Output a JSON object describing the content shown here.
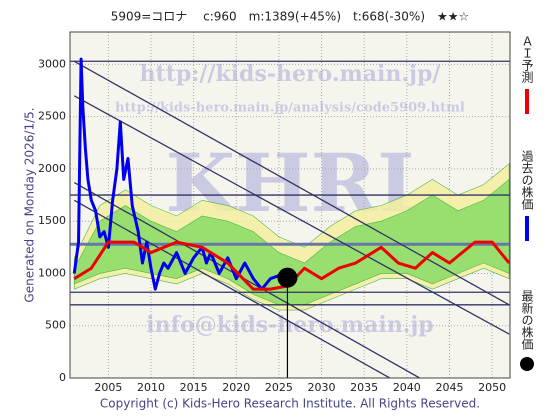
{
  "chart_data": {
    "type": "line",
    "title": "5909=コロナ　 c:960　m:1389(+45%)　t:668(-30%)　★★☆",
    "side_label": "Generated on Monday 2026/1/5.",
    "footer": "Copyright (c) Kids-Hero Research Institute. All Rights Reserved.",
    "watermarks": [
      "http://kids-hero.main.jp/",
      "http://kids-hero.main.jp/analysis/code5909.html",
      "KHRI",
      "info@kids-hero.main.jp"
    ],
    "xlim": [
      2000.5,
      2052.1
    ],
    "ylim": [
      0,
      3310
    ],
    "xticks": [
      2005,
      2010,
      2015,
      2020,
      2025,
      2030,
      2035,
      2040,
      2045,
      2050
    ],
    "yticks": [
      0,
      500,
      1000,
      1500,
      2000,
      2500,
      3000
    ],
    "grid": true,
    "series": [
      {
        "name": "過去の株価",
        "color": "#0000ee",
        "x": [
          2001,
          2001.5,
          2001.8,
          2002,
          2002.3,
          2002.6,
          2003,
          2003.5,
          2004,
          2004.5,
          2005,
          2005.5,
          2006,
          2006.4,
          2006.8,
          2007.3,
          2007.8,
          2008.5,
          2009,
          2009.5,
          2010,
          2010.5,
          2011,
          2011.5,
          2012,
          2013,
          2014,
          2015,
          2016,
          2016.5,
          2017,
          2018,
          2019,
          2020,
          2021,
          2022,
          2023,
          2024,
          2025
        ],
        "values": [
          1000,
          1300,
          3050,
          2600,
          2200,
          1900,
          1700,
          1600,
          1350,
          1400,
          1250,
          1700,
          2000,
          2450,
          1900,
          2100,
          1650,
          1400,
          1100,
          1300,
          1050,
          850,
          1000,
          1100,
          1050,
          1200,
          1000,
          1150,
          1250,
          1100,
          1200,
          1000,
          1150,
          950,
          1100,
          950,
          850,
          950,
          980
        ]
      },
      {
        "name": "ＡＩ予測",
        "color": "#ee0000",
        "x": [
          2001,
          2003,
          2005,
          2008,
          2010,
          2013,
          2016,
          2019,
          2022,
          2024,
          2026,
          2028,
          2030,
          2032,
          2034,
          2037,
          2039,
          2041,
          2043,
          2045,
          2048,
          2050,
          2052
        ],
        "values": [
          950,
          1050,
          1300,
          1300,
          1200,
          1300,
          1250,
          1100,
          850,
          850,
          880,
          1050,
          950,
          1050,
          1100,
          1250,
          1100,
          1050,
          1200,
          1100,
          1300,
          1300,
          1100
        ]
      }
    ],
    "latest": {
      "name": "最新の株価",
      "x": 2026,
      "value": 960
    },
    "bands": [
      {
        "color": "#f4f0a0",
        "x": [
          2001,
          2004,
          2007,
          2010,
          2013,
          2016,
          2019,
          2022,
          2025,
          2028,
          2031,
          2034,
          2037,
          2040,
          2043,
          2046,
          2049,
          2052
        ],
        "upper": [
          1150,
          1650,
          1800,
          1650,
          1550,
          1700,
          1650,
          1550,
          1350,
          1250,
          1450,
          1600,
          1650,
          1750,
          1900,
          1750,
          1850,
          2050
        ],
        "lower": [
          850,
          950,
          1000,
          950,
          900,
          1000,
          900,
          750,
          650,
          650,
          750,
          850,
          950,
          950,
          850,
          950,
          1050,
          950
        ]
      },
      {
        "color": "#88dd66",
        "x": [
          2001,
          2004,
          2007,
          2010,
          2013,
          2016,
          2019,
          2022,
          2025,
          2028,
          2031,
          2034,
          2037,
          2040,
          2043,
          2046,
          2049,
          2052
        ],
        "upper": [
          1050,
          1500,
          1650,
          1500,
          1400,
          1550,
          1500,
          1400,
          1200,
          1100,
          1300,
          1450,
          1500,
          1600,
          1750,
          1600,
          1700,
          1900
        ],
        "lower": [
          900,
          1000,
          1050,
          1000,
          950,
          1050,
          950,
          800,
          700,
          700,
          800,
          900,
          1000,
          1000,
          900,
          1000,
          1100,
          1000
        ]
      }
    ],
    "hlines": [
      3030,
      1750,
      1280,
      820,
      700
    ],
    "trendlines": [
      [
        [
          2001,
          3030
        ],
        [
          2052,
          700
        ]
      ],
      [
        [
          2001,
          2700
        ],
        [
          2052,
          420
        ]
      ],
      [
        [
          2001,
          1870
        ],
        [
          2041.5,
          0
        ]
      ],
      [
        [
          2001,
          1700
        ],
        [
          2038,
          0
        ]
      ]
    ]
  }
}
